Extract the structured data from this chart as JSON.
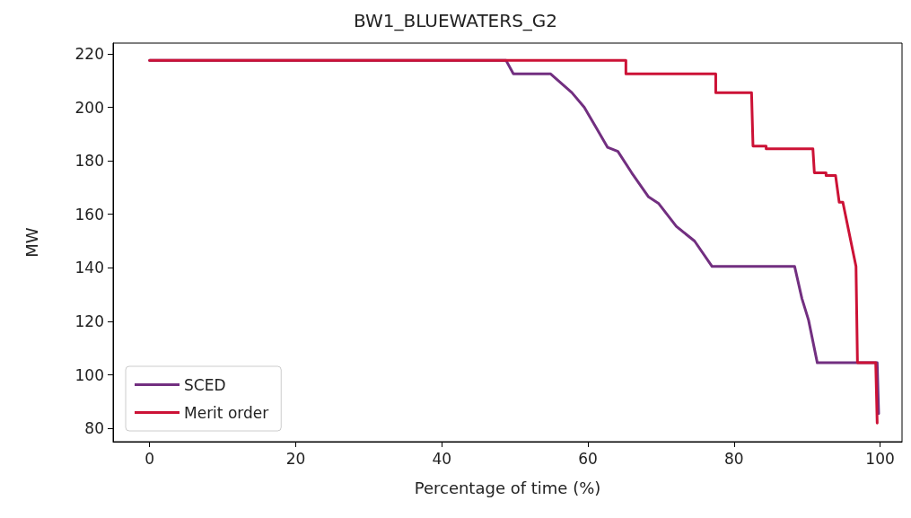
{
  "chart_data": {
    "type": "line",
    "title": "BW1_BLUEWATERS_G2",
    "xlabel": "Percentage of time (%)",
    "ylabel": "MW",
    "xlim": [
      -5,
      103
    ],
    "xticks": [
      0,
      20,
      40,
      60,
      80,
      100
    ],
    "ylim": [
      75,
      224
    ],
    "yticks": [
      80,
      100,
      120,
      140,
      160,
      180,
      200,
      220
    ],
    "grid": false,
    "legend": "bottom left",
    "marker": "none",
    "line_style": "solid",
    "series": [
      {
        "name": "SCED",
        "color": "#722f80",
        "x": [
          0,
          48.8,
          49.8,
          54.9,
          57.8,
          59.5,
          61.1,
          62.7,
          64.1,
          66,
          68.3,
          69.7,
          72.1,
          74.6,
          77,
          88.3,
          89.3,
          90.2,
          91.4,
          99.6,
          99.8
        ],
        "values": [
          217.5,
          217.5,
          212.5,
          212.5,
          205.5,
          200,
          192.5,
          185,
          183.5,
          175.5,
          166.5,
          164,
          155.5,
          150,
          140.5,
          140.5,
          128.5,
          120.5,
          104.5,
          104.5,
          85.5
        ]
      },
      {
        "name": "Merit order",
        "color": "#cc1236",
        "x": [
          0,
          65.2,
          65.2,
          77.5,
          77.5,
          82.4,
          82.6,
          84.4,
          84.4,
          90.8,
          91,
          92.6,
          92.6,
          93.9,
          94.4,
          94.9,
          96.7,
          96.9,
          99.4,
          99.6
        ],
        "values": [
          217.5,
          217.5,
          212.5,
          212.5,
          205.5,
          205.5,
          185.5,
          185.5,
          184.5,
          184.5,
          175.5,
          175.5,
          174.5,
          174.5,
          164.5,
          164.5,
          140.5,
          104.5,
          104.5,
          82
        ]
      }
    ]
  }
}
